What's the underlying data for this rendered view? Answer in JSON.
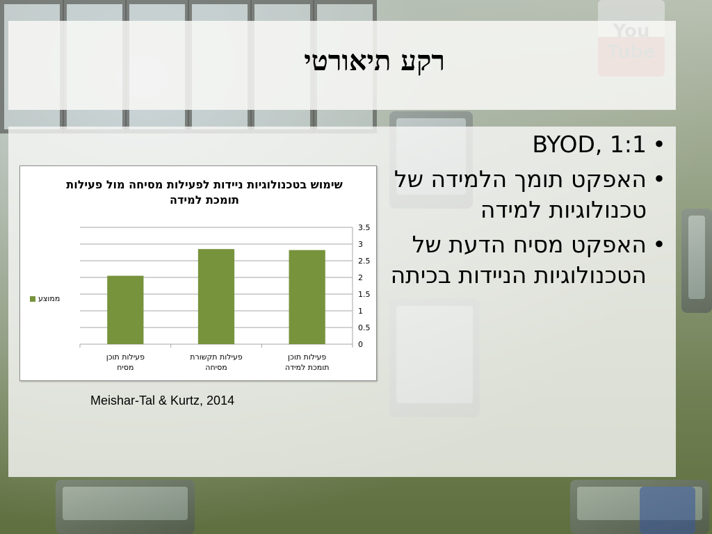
{
  "slide": {
    "title": "רקע תיאורטי",
    "bullets": [
      {
        "text": "BYOD, 1:1"
      },
      {
        "text": "האפקט תומך הלמידה של טכנולוגיות למידה"
      },
      {
        "text": "האפקט מסיח הדעת של הטכנולוגיות הניידות בכיתה"
      }
    ],
    "bullet_char": "•",
    "citation": "Meishar-Tal & Kurtz, 2014",
    "background_logo_text": "You Tube"
  },
  "chart_data": {
    "type": "bar",
    "title": "שימוש בטכנולוגיות ניידות לפעילות מסיחה מול פעילות תומכת למידה",
    "categories": [
      "פעילות תוכן מסיח",
      "פעילות תקשורת מסיחה",
      "פעילות  תוכן תומכת למידה"
    ],
    "series": [
      {
        "name": "ממוצע",
        "values": [
          2.05,
          2.85,
          2.82
        ]
      }
    ],
    "ylim": [
      0,
      3.5
    ],
    "yticks": [
      "0",
      "0.5",
      "1",
      "1.5",
      "2",
      "2.5",
      "3",
      "3.5"
    ],
    "grid": true,
    "legend_position": "left",
    "y_axis_side": "right",
    "bar_color": "#77933c"
  }
}
